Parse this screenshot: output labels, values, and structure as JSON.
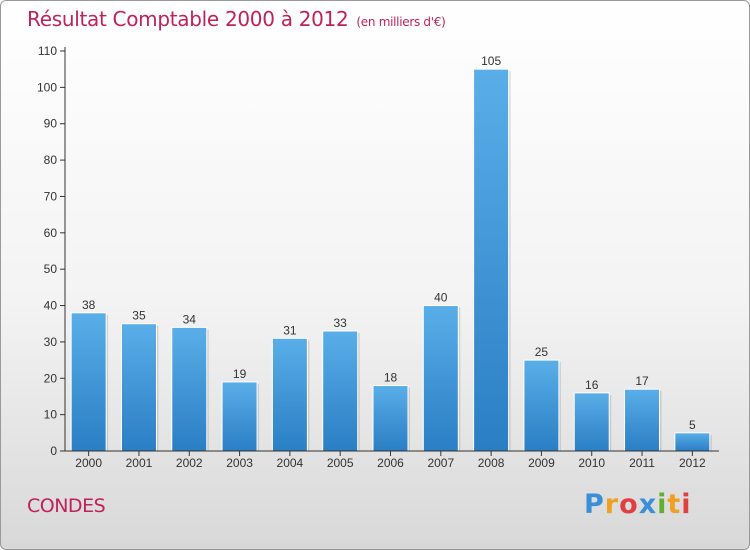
{
  "chart_data": {
    "type": "bar",
    "title": "Résultat Comptable 2000 à 2012",
    "subtitle": "(en milliers d'€)",
    "categories": [
      "2000",
      "2001",
      "2002",
      "2003",
      "2004",
      "2005",
      "2006",
      "2007",
      "2008",
      "2009",
      "2010",
      "2011",
      "2012"
    ],
    "values": [
      38,
      35,
      34,
      19,
      31,
      33,
      18,
      40,
      105,
      25,
      16,
      17,
      5
    ],
    "ylim": [
      0,
      110
    ],
    "yticks": [
      0,
      10,
      20,
      30,
      40,
      50,
      60,
      70,
      80,
      90,
      100,
      110
    ],
    "xlabel": "",
    "ylabel": "",
    "grid": false,
    "bar_color_top": "#5aaee8",
    "bar_color_bottom": "#2a7ec4"
  },
  "commune": "CONDES",
  "brand": {
    "text": "Proxiti",
    "letters": [
      {
        "char": "P",
        "color": "#3a8fd8"
      },
      {
        "char": "r",
        "color": "#f0a020"
      },
      {
        "char": "o",
        "color": "#e04040"
      },
      {
        "char": "x",
        "color": "#3a8fd8"
      },
      {
        "char": "i",
        "color": "#60b030"
      },
      {
        "char": "t",
        "color": "#f0a020"
      },
      {
        "char": "i",
        "color": "#e04040"
      }
    ]
  },
  "colors": {
    "title": "#c0215a",
    "axis": "#333333",
    "label": "#333333"
  }
}
